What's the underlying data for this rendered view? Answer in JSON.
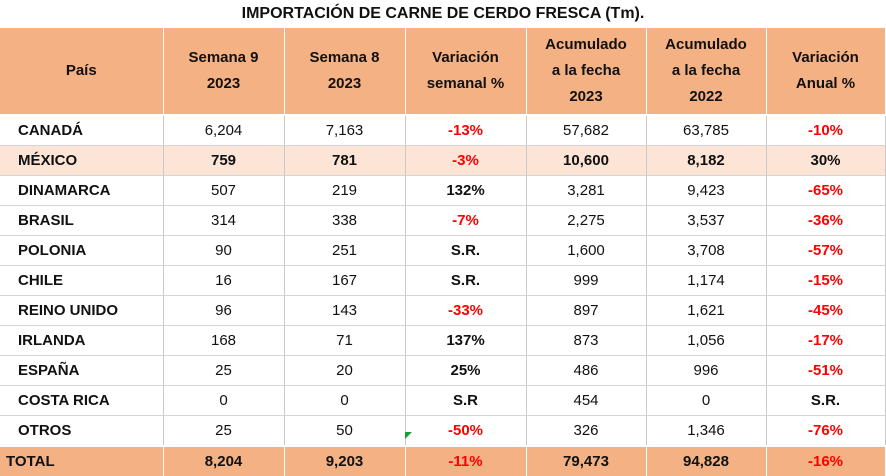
{
  "title": "IMPORTACIÓN DE CARNE DE CERDO FRESCA (Tm).",
  "headers": [
    "País",
    "Semana 9\n2023",
    "Semana 8\n2023",
    "Variación\nsemanal %",
    "Acumulado\na la fecha\n2023",
    "Acumulado\na la fecha\n2022",
    "Variación\nAnual %"
  ],
  "rows": [
    [
      "CANADÁ",
      "6,204",
      "7,163",
      "-13%",
      "57,682",
      "63,785",
      "-10%"
    ],
    [
      "MÉXICO",
      "759",
      "781",
      "-3%",
      "10,600",
      "8,182",
      "30%"
    ],
    [
      "DINAMARCA",
      "507",
      "219",
      "132%",
      "3,281",
      "9,423",
      "-65%"
    ],
    [
      "BRASIL",
      "314",
      "338",
      "-7%",
      "2,275",
      "3,537",
      "-36%"
    ],
    [
      "POLONIA",
      "90",
      "251",
      "S.R.",
      "1,600",
      "3,708",
      "-57%"
    ],
    [
      "CHILE",
      "16",
      "167",
      "S.R.",
      "999",
      "1,174",
      "-15%"
    ],
    [
      "REINO UNIDO",
      "96",
      "143",
      "-33%",
      "897",
      "1,621",
      "-45%"
    ],
    [
      "IRLANDA",
      "168",
      "71",
      "137%",
      "873",
      "1,056",
      "-17%"
    ],
    [
      "ESPAÑA",
      "25",
      "20",
      "25%",
      "486",
      "996",
      "-51%"
    ],
    [
      "COSTA RICA",
      "0",
      "0",
      "S.R",
      "454",
      "0",
      "S.R."
    ],
    [
      "OTROS",
      "25",
      "50",
      "-50%",
      "326",
      "1,346",
      "-76%"
    ]
  ],
  "total": [
    "TOTAL",
    "8,204",
    "9,203",
    "-11%",
    "79,473",
    "94,828",
    "-16%"
  ],
  "colors": {
    "header_bg": "#f4b183",
    "highlight_row_bg": "#fce4d6",
    "negative_text": "#ff0000"
  }
}
